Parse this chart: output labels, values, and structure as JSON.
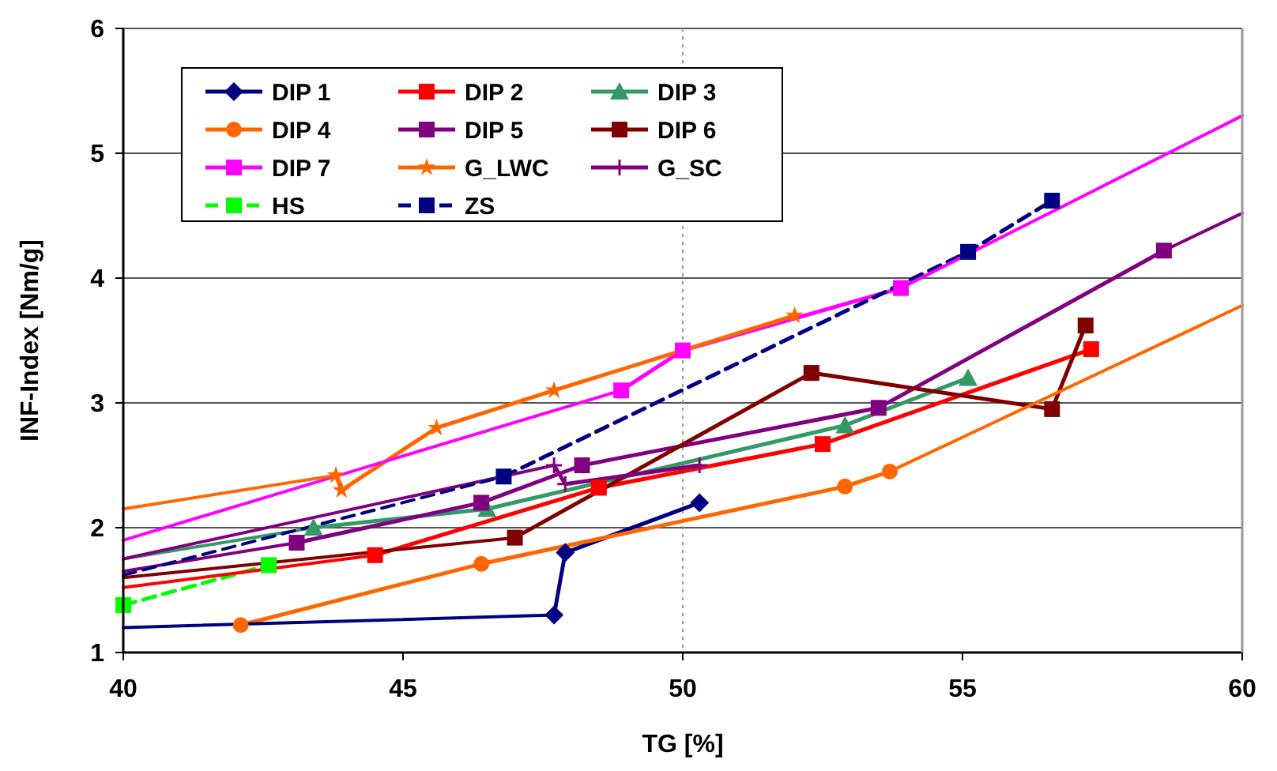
{
  "chart_data": {
    "type": "line",
    "xlabel": "TG [%]",
    "ylabel": "INF-Index [Nm/g]",
    "xlim": [
      40,
      60
    ],
    "ylim": [
      1,
      6
    ],
    "xticks": [
      40,
      45,
      50,
      55,
      60
    ],
    "yticks": [
      1,
      2,
      3,
      4,
      5,
      6
    ],
    "grid": "y",
    "legend": "top left",
    "ref_lines": [
      {
        "axis": "x",
        "value": 50,
        "color": "#999999",
        "line_style": "dotted"
      }
    ],
    "series": [
      {
        "name": "DIP 1",
        "color": "#000080",
        "marker": "diamond",
        "x": [
          47.7,
          47.9,
          50.3
        ],
        "values": [
          1.3,
          1.8,
          2.2
        ]
      },
      {
        "name": "DIP 2",
        "color": "#ff0000",
        "marker": "square",
        "x": [
          44.5,
          48.5,
          52.5,
          57.3
        ],
        "values": [
          1.78,
          2.32,
          2.67,
          3.43
        ]
      },
      {
        "name": "DIP 3",
        "color": "#339966",
        "marker": "triangle",
        "x": [
          43.4,
          46.5,
          52.9,
          55.1
        ],
        "values": [
          2.0,
          2.15,
          2.82,
          3.2
        ]
      },
      {
        "name": "DIP 4",
        "color": "#ff6600",
        "marker": "circle",
        "x": [
          42.1,
          46.4,
          52.9,
          53.7
        ],
        "values": [
          1.22,
          1.71,
          2.33,
          2.45
        ]
      },
      {
        "name": "DIP 5",
        "color": "#800080",
        "marker": "square",
        "x": [
          43.1,
          46.4,
          48.2,
          53.5,
          58.6
        ],
        "values": [
          1.88,
          2.2,
          2.5,
          2.96,
          4.22
        ]
      },
      {
        "name": "DIP 6",
        "color": "#800000",
        "marker": "square",
        "x": [
          47.0,
          52.3,
          56.6,
          57.2
        ],
        "values": [
          1.92,
          3.24,
          2.95,
          3.62
        ]
      },
      {
        "name": "DIP 7",
        "color": "#ff00ff",
        "marker": "square",
        "x": [
          48.9,
          50.0,
          53.9
        ],
        "values": [
          3.1,
          3.42,
          3.92
        ]
      },
      {
        "name": "G_LWC",
        "color": "#ff6600",
        "marker": "star",
        "x": [
          43.8,
          43.9,
          45.6,
          47.7,
          52.0
        ],
        "values": [
          2.42,
          2.3,
          2.8,
          3.1,
          3.7
        ]
      },
      {
        "name": "G_SC",
        "color": "#800080",
        "marker": "cross",
        "x": [
          47.7,
          47.9,
          50.3
        ],
        "values": [
          2.5,
          2.35,
          2.5
        ]
      },
      {
        "name": "HS",
        "color": "#00ff00",
        "marker": "square",
        "line_style": "dashed",
        "x": [
          40,
          42.6
        ],
        "values": [
          1.38,
          1.7
        ]
      },
      {
        "name": "ZS",
        "color": "#000080",
        "marker": "square",
        "line_style": "dashed",
        "x": [
          46.8,
          55.1,
          56.6
        ],
        "values": [
          2.41,
          4.21,
          4.62
        ]
      },
      {
        "color": "#000080",
        "marker": "none",
        "x": [
          40,
          47.7
        ],
        "values": [
          1.2,
          1.3
        ]
      },
      {
        "color": "#ff0000",
        "marker": "none",
        "x": [
          40,
          44.5
        ],
        "values": [
          1.52,
          1.78
        ]
      },
      {
        "color": "#339966",
        "marker": "none",
        "x": [
          40,
          43.4
        ],
        "values": [
          1.75,
          2.0
        ]
      },
      {
        "color": "#ff6600",
        "marker": "none",
        "x": [
          53.7,
          60
        ],
        "values": [
          2.45,
          3.78
        ]
      },
      {
        "color": "#800080",
        "marker": "none",
        "x": [
          40,
          43.1
        ],
        "values": [
          1.65,
          1.88
        ]
      },
      {
        "color": "#800080",
        "marker": "none",
        "x": [
          58.6,
          60
        ],
        "values": [
          4.22,
          4.52
        ]
      },
      {
        "color": "#800000",
        "marker": "none",
        "x": [
          40,
          47.0
        ],
        "values": [
          1.6,
          1.92
        ]
      },
      {
        "color": "#ff00ff",
        "marker": "none",
        "x": [
          40,
          48.9
        ],
        "values": [
          1.9,
          3.1
        ]
      },
      {
        "color": "#ff00ff",
        "marker": "none",
        "x": [
          53.9,
          60
        ],
        "values": [
          3.92,
          5.3
        ]
      },
      {
        "color": "#ff6600",
        "marker": "none",
        "x": [
          40,
          43.8
        ],
        "values": [
          2.15,
          2.42
        ]
      },
      {
        "color": "#800080",
        "marker": "none",
        "x": [
          40,
          47.7
        ],
        "values": [
          1.75,
          2.5
        ]
      },
      {
        "color": "#000080",
        "marker": "none",
        "line_style": "dashed",
        "x": [
          40,
          46.8
        ],
        "values": [
          1.62,
          2.41
        ]
      }
    ]
  }
}
